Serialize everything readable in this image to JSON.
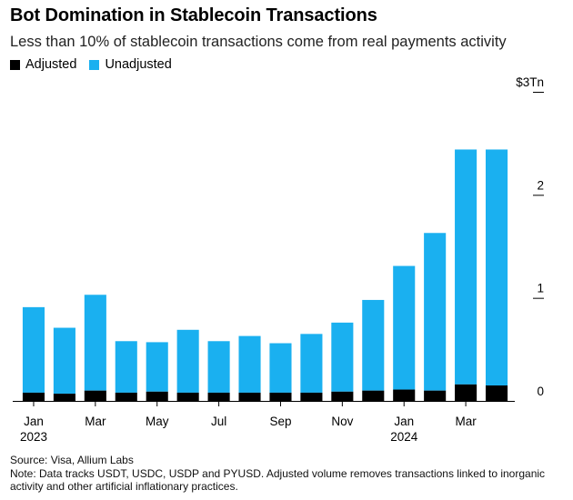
{
  "title": "Bot Domination in Stablecoin Transactions",
  "subtitle": "Less than 10% of stablecoin transactions come from real payments activity",
  "legend": {
    "adjusted": {
      "label": "Adjusted",
      "color": "#000000"
    },
    "unadjusted": {
      "label": "Unadjusted",
      "color": "#1AB0F0"
    }
  },
  "footer": {
    "source": "Source: Visa, Allium Labs",
    "note": "Note: Data tracks USDT, USDC, USDP and PYUSD. Adjusted volume removes transactions linked to inorganic activity and other artificial inflationary practices."
  },
  "chart_data": {
    "type": "bar",
    "stacked": true,
    "unit": "$ trillions",
    "categories": [
      "Jan 2023",
      "Feb 2023",
      "Mar 2023",
      "Apr 2023",
      "May 2023",
      "Jun 2023",
      "Jul 2023",
      "Aug 2023",
      "Sep 2023",
      "Oct 2023",
      "Nov 2023",
      "Dec 2023",
      "Jan 2024",
      "Feb 2024",
      "Mar 2024",
      "Apr 2024"
    ],
    "series": [
      {
        "name": "Adjusted",
        "color": "#000000",
        "values": [
          0.08,
          0.07,
          0.1,
          0.08,
          0.09,
          0.08,
          0.08,
          0.08,
          0.08,
          0.08,
          0.09,
          0.1,
          0.11,
          0.1,
          0.16,
          0.15
        ]
      },
      {
        "name": "Unadjusted",
        "color": "#1AB0F0",
        "values": [
          0.83,
          0.64,
          0.93,
          0.5,
          0.48,
          0.61,
          0.5,
          0.55,
          0.48,
          0.57,
          0.67,
          0.88,
          1.2,
          1.53,
          2.28,
          2.29
        ]
      }
    ],
    "x_tick_labels": [
      {
        "index": 0,
        "label": "Jan",
        "year": "2023"
      },
      {
        "index": 2,
        "label": "Mar",
        "year": ""
      },
      {
        "index": 4,
        "label": "May",
        "year": ""
      },
      {
        "index": 6,
        "label": "Jul",
        "year": ""
      },
      {
        "index": 8,
        "label": "Sep",
        "year": ""
      },
      {
        "index": 10,
        "label": "Nov",
        "year": ""
      },
      {
        "index": 12,
        "label": "Jan",
        "year": "2024"
      },
      {
        "index": 14,
        "label": "Mar",
        "year": ""
      }
    ],
    "y_ticks": [
      {
        "value": 0,
        "label": "0"
      },
      {
        "value": 1,
        "label": "1"
      },
      {
        "value": 2,
        "label": "2"
      },
      {
        "value": 3,
        "label": "$3Tn"
      }
    ],
    "ylim": [
      0,
      3
    ],
    "y_axis_position": "right",
    "grid": false
  }
}
